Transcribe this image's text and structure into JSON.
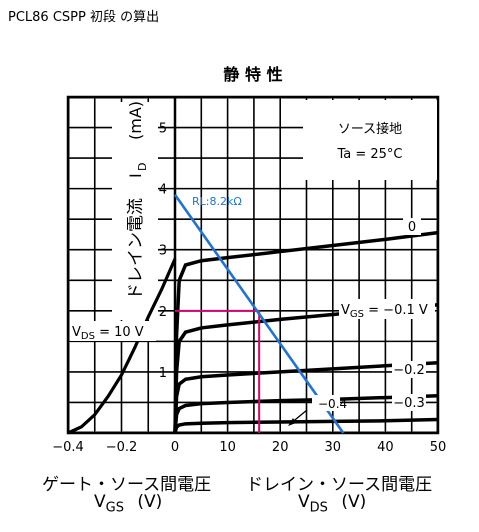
{
  "page": {
    "title": "PCL86 CSPP 初段 の算出"
  },
  "chart_data": {
    "type": "line",
    "title": "静 特 性",
    "condition_label": "ソース接地",
    "condition_temp": "Ta = 25°C",
    "ylabel_text": "ドレイン電流",
    "ylabel_symbol": "I",
    "ylabel_sub": "D",
    "ylabel_unit": "(mA)",
    "ylim": [
      0,
      5.5
    ],
    "yticks": [
      "1",
      "2",
      "3",
      "4",
      "5"
    ],
    "left_panel": {
      "xlabel": "ゲート・ソース間電圧",
      "xlabel_symbol": "V",
      "xlabel_sub": "GS",
      "xlabel_unit": "(V)",
      "xlim": [
        -0.4,
        0
      ],
      "xticks": [
        "−0.4",
        "−0.2",
        "0"
      ],
      "series_label_prefix": "V",
      "series_label_sub": "DS",
      "series_label_value": " = 10 V",
      "curve": [
        [
          -0.4,
          0
        ],
        [
          -0.35,
          0.1
        ],
        [
          -0.3,
          0.3
        ],
        [
          -0.25,
          0.6
        ],
        [
          -0.2,
          0.95
        ],
        [
          -0.15,
          1.4
        ],
        [
          -0.1,
          1.9
        ],
        [
          -0.05,
          2.35
        ],
        [
          0,
          2.85
        ]
      ]
    },
    "right_panel": {
      "xlabel": "ドレイン・ソース間電圧",
      "xlabel_symbol": "V",
      "xlabel_sub": "DS",
      "xlabel_unit": "(V)",
      "xlim": [
        0,
        50
      ],
      "xticks": [
        "0",
        "10",
        "20",
        "30",
        "40",
        "50"
      ],
      "series": [
        {
          "name": "0",
          "points": [
            [
              0,
              0
            ],
            [
              0.3,
              1.6
            ],
            [
              0.8,
              2.5
            ],
            [
              2,
              2.75
            ],
            [
              5,
              2.82
            ],
            [
              10,
              2.87
            ],
            [
              20,
              2.97
            ],
            [
              30,
              3.07
            ],
            [
              40,
              3.17
            ],
            [
              50,
              3.28
            ]
          ]
        },
        {
          "name": "−0.1",
          "points": [
            [
              0,
              0
            ],
            [
              0.3,
              1.0
            ],
            [
              0.8,
              1.5
            ],
            [
              2,
              1.65
            ],
            [
              5,
              1.72
            ],
            [
              10,
              1.77
            ],
            [
              20,
              1.86
            ],
            [
              30,
              1.94
            ],
            [
              40,
              2.02
            ],
            [
              50,
              2.1
            ]
          ]
        },
        {
          "name": "−0.2",
          "points": [
            [
              0,
              0
            ],
            [
              0.3,
              0.6
            ],
            [
              0.8,
              0.8
            ],
            [
              2,
              0.88
            ],
            [
              5,
              0.92
            ],
            [
              10,
              0.95
            ],
            [
              20,
              1.0
            ],
            [
              30,
              1.05
            ],
            [
              40,
              1.1
            ],
            [
              50,
              1.15
            ]
          ]
        },
        {
          "name": "−0.3",
          "points": [
            [
              0,
              0
            ],
            [
              0.3,
              0.3
            ],
            [
              0.8,
              0.4
            ],
            [
              2,
              0.45
            ],
            [
              5,
              0.48
            ],
            [
              10,
              0.5
            ],
            [
              20,
              0.53
            ],
            [
              30,
              0.55
            ],
            [
              40,
              0.58
            ],
            [
              50,
              0.61
            ]
          ]
        },
        {
          "name": "−0.4",
          "points": [
            [
              0,
              0
            ],
            [
              0.3,
              0.1
            ],
            [
              0.8,
              0.13
            ],
            [
              2,
              0.15
            ],
            [
              5,
              0.16
            ],
            [
              10,
              0.17
            ],
            [
              20,
              0.18
            ],
            [
              30,
              0.19
            ],
            [
              40,
              0.2
            ],
            [
              50,
              0.22
            ]
          ]
        }
      ],
      "series_label_prefix": "V",
      "series_label_sub": "GS",
      "series_label_value": " = −0.1 V",
      "other_labels": [
        "0",
        "−0.2",
        "−0.3",
        "−0.4"
      ]
    },
    "load_line": {
      "label": "RL:8.2kΩ",
      "points": [
        [
          0,
          3.9
        ],
        [
          32,
          0
        ]
      ],
      "color": "#1e73d8"
    },
    "operating_point": {
      "x": 16,
      "y": 2.0,
      "color": "#d6006f"
    }
  }
}
